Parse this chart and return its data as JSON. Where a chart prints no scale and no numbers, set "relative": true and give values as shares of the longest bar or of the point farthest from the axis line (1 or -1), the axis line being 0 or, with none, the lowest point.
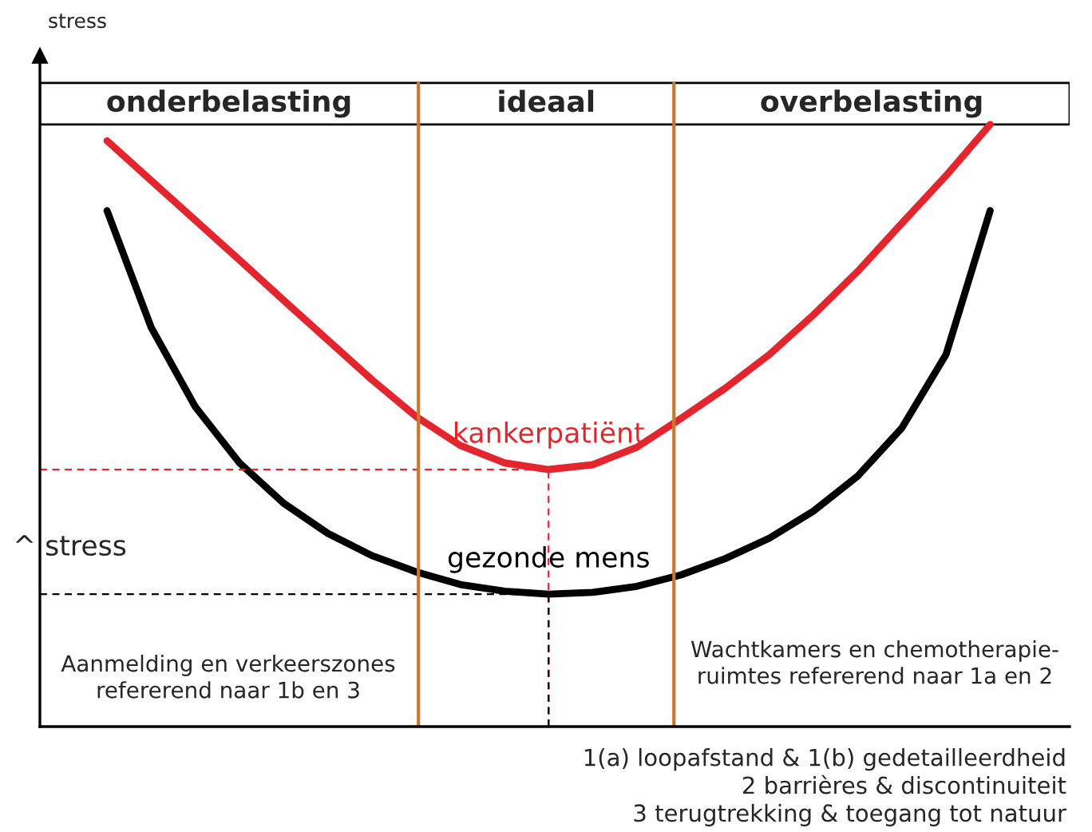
{
  "chart_data": {
    "type": "line",
    "relative": true,
    "ylabel": "stress",
    "legend": false,
    "categories": [
      null,
      null,
      null,
      null,
      null,
      null,
      null,
      null,
      null,
      null,
      null,
      null,
      null,
      null,
      null,
      null,
      null,
      null,
      null,
      null,
      null
    ],
    "series": [
      {
        "name": "kankerpatiënt",
        "color": "#e3262e",
        "values": [
          0.973,
          0.907,
          0.841,
          0.775,
          0.708,
          0.642,
          0.576,
          0.515,
          0.467,
          0.438,
          0.427,
          0.435,
          0.464,
          0.512,
          0.562,
          0.618,
          0.684,
          0.756,
          0.836,
          0.915,
          1.0
        ]
      },
      {
        "name": "gezonde mens",
        "color": "#000000",
        "values": [
          0.857,
          0.663,
          0.531,
          0.438,
          0.371,
          0.321,
          0.284,
          0.257,
          0.236,
          0.225,
          0.22,
          0.223,
          0.233,
          0.252,
          0.279,
          0.313,
          0.358,
          0.416,
          0.496,
          0.618,
          0.857
        ]
      }
    ],
    "ref_lines": [
      {
        "axis": "y",
        "value": 0.427,
        "color": "#e3262e",
        "line_style": "dashed"
      },
      {
        "axis": "y",
        "value": 0.22,
        "color": "#000000",
        "line_style": "dashed"
      }
    ],
    "annotations": [
      "onderbelasting",
      "ideaal",
      "overbelasting",
      "^ stress",
      "Aanmelding en verkeerszones\nrefererend naar 1b en 3",
      "Wachtkamers en chemotherapie-\nruimtes refererend naar 1a en 2",
      "1(a) loopafstand & 1(b) gedetailleerdheid\n2 barrières & discontinuiteit\n3 terugtrekking & toegang tot natuur"
    ]
  }
}
